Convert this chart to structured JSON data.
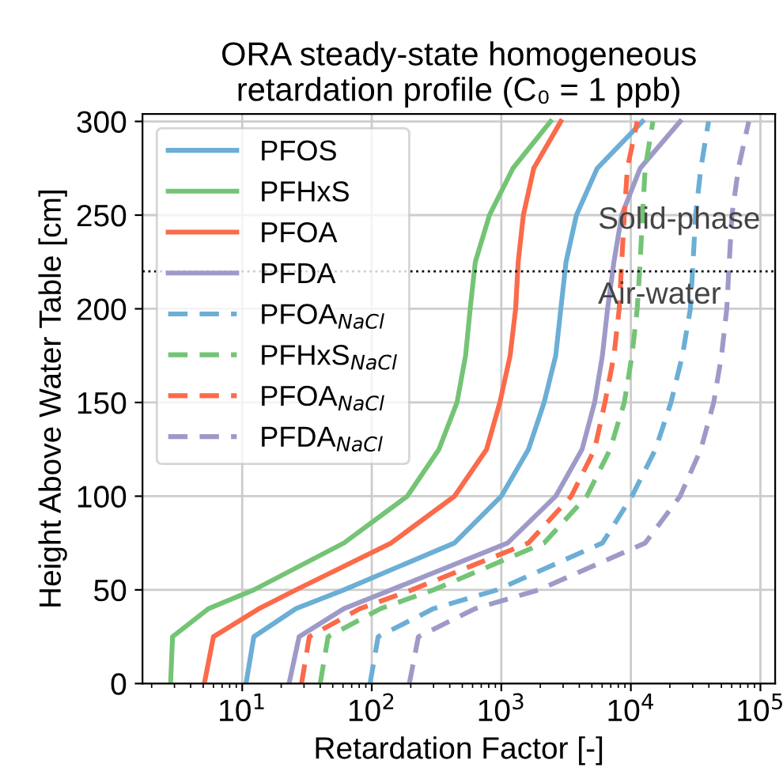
{
  "chart_data": {
    "type": "line",
    "title": "ORA steady-state homogeneous\nretardation profile (C₀ = 1 ppb)",
    "xlabel": "Retardation Factor [-]",
    "ylabel": "Height Above Water Table [cm]",
    "log": "x",
    "xlim": [
      1.7,
      130000
    ],
    "ylim": [
      0,
      304
    ],
    "xticks": [
      {
        "value": 10,
        "label": "10$^{1}$"
      },
      {
        "value": 100,
        "label": "10$^{2}$"
      },
      {
        "value": 1000,
        "label": "10$^{3}$"
      },
      {
        "value": 10000,
        "label": "10$^{4}$"
      },
      {
        "value": 100000,
        "label": "10$^{5}$"
      }
    ],
    "yticks": [
      0,
      50,
      100,
      150,
      200,
      250,
      300
    ],
    "grid": true,
    "legend": "top left",
    "marker": "none",
    "ref_lines": [
      {
        "axis": "y",
        "value": 220,
        "color": "#000000",
        "line_style": "dotted"
      }
    ],
    "annotations": [
      "Solid-phase",
      "Air-water"
    ],
    "series": [
      {
        "name": "PFOS",
        "color": "#6baed6",
        "line_style": "solid",
        "x": [
          10.7,
          12.3,
          26,
          61,
          435,
          1000,
          1620,
          2140,
          2630,
          2880,
          3160,
          3800,
          5500,
          12300
        ],
        "values": [
          0,
          25,
          40,
          50,
          75,
          100,
          125,
          150,
          175,
          200,
          225,
          250,
          275,
          300
        ]
      },
      {
        "name": "PFHxS",
        "color": "#74c476",
        "line_style": "solid",
        "x": [
          2.8,
          2.9,
          5.5,
          12.3,
          61,
          188,
          330,
          455,
          530,
          575,
          630,
          810,
          1230,
          2400
        ],
        "values": [
          0,
          25,
          40,
          50,
          75,
          100,
          125,
          150,
          175,
          200,
          225,
          250,
          275,
          300
        ]
      },
      {
        "name": "PFOA",
        "color": "#fb6a4a",
        "line_style": "solid",
        "x": [
          5.1,
          6.0,
          13.5,
          26,
          141,
          435,
          770,
          975,
          1170,
          1290,
          1350,
          1480,
          1780,
          2880
        ],
        "values": [
          0,
          25,
          40,
          50,
          75,
          100,
          125,
          150,
          175,
          200,
          225,
          250,
          275,
          300
        ]
      },
      {
        "name": "PFDA",
        "color": "#9e9ac8",
        "line_style": "solid",
        "x": [
          23,
          27.5,
          61,
          141,
          1120,
          2630,
          4200,
          5250,
          6030,
          6610,
          7400,
          8500,
          11800,
          24000
        ],
        "values": [
          0,
          25,
          40,
          50,
          75,
          100,
          125,
          150,
          175,
          200,
          225,
          250,
          275,
          300
        ]
      },
      {
        "name": "PFOA$_{NaCl}$",
        "color": "#6baed6",
        "line_style": "dashed",
        "x": [
          97,
          112,
          300,
          930,
          6030,
          10200,
          15500,
          20400,
          25000,
          28800,
          30200,
          31600,
          34700,
          39800
        ],
        "values": [
          0,
          25,
          40,
          50,
          75,
          100,
          125,
          150,
          175,
          200,
          225,
          250,
          275,
          300
        ]
      },
      {
        "name": "PFHxS$_{NaCl}$",
        "color": "#74c476",
        "line_style": "dashed",
        "x": [
          40,
          46,
          117,
          300,
          2140,
          4570,
          6920,
          8900,
          10200,
          11200,
          11800,
          12300,
          12900,
          14800
        ],
        "values": [
          0,
          25,
          40,
          50,
          75,
          100,
          125,
          150,
          175,
          200,
          225,
          250,
          275,
          300
        ]
      },
      {
        "name": "PFOA$_{NaCl}$",
        "color": "#fb6a4a",
        "line_style": "dashed",
        "x": [
          28.7,
          33,
          81,
          204,
          1620,
          3470,
          5250,
          6310,
          7400,
          8130,
          8500,
          8900,
          9400,
          11200
        ],
        "values": [
          0,
          25,
          40,
          50,
          75,
          100,
          125,
          150,
          175,
          200,
          225,
          250,
          275,
          300
        ]
      },
      {
        "name": "PFDA$_{NaCl}$",
        "color": "#9e9ac8",
        "line_style": "dashed",
        "x": [
          195,
          229,
          630,
          1950,
          12900,
          24000,
          34700,
          43600,
          50100,
          55000,
          57500,
          60300,
          67600,
          81300
        ],
        "values": [
          0,
          25,
          40,
          50,
          75,
          100,
          125,
          150,
          175,
          200,
          225,
          250,
          275,
          300
        ]
      }
    ]
  }
}
